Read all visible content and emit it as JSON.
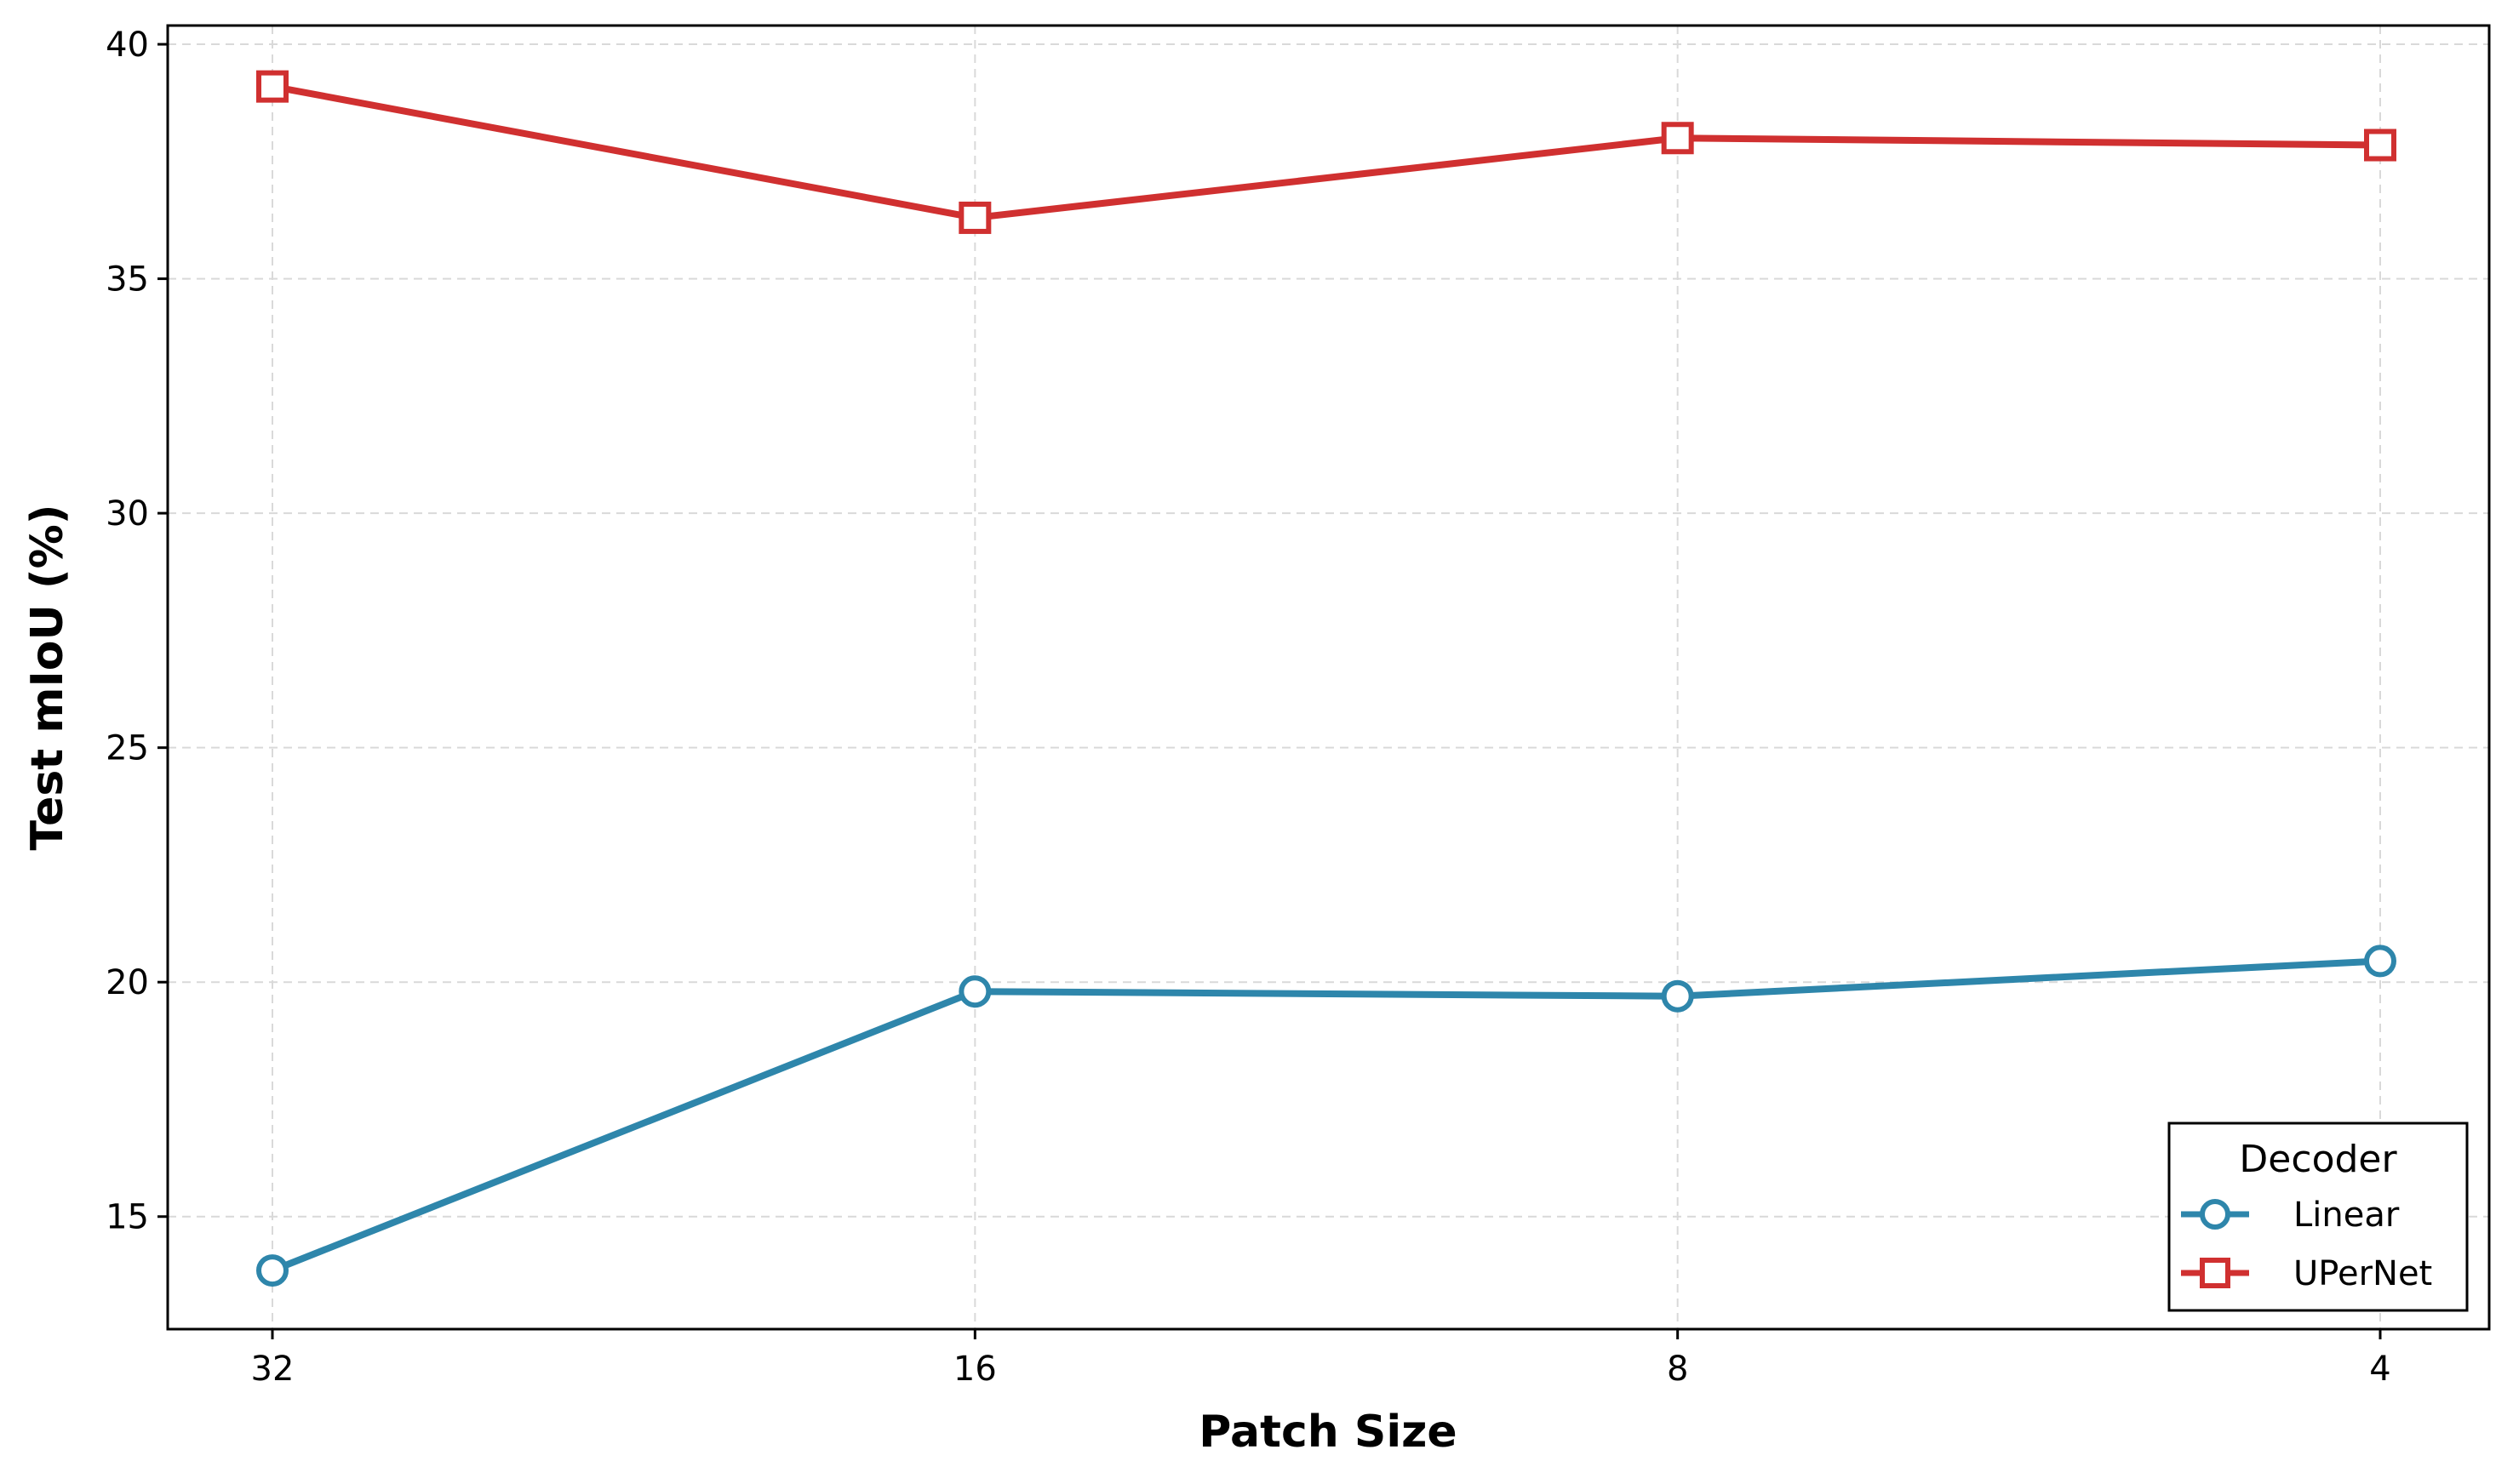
{
  "chart_data": {
    "type": "line",
    "categories": [
      "32",
      "16",
      "8",
      "4"
    ],
    "x": [
      32,
      16,
      8,
      4
    ],
    "xscale": "log",
    "xlabel": "Patch Size",
    "ylabel": "Test mIoU (%)",
    "ylim": [
      12.6,
      40.4
    ],
    "yticks": [
      15,
      20,
      25,
      30,
      35,
      40
    ],
    "grid": true,
    "legend": {
      "title": "Decoder",
      "position": "lower-right"
    },
    "series": [
      {
        "name": "Linear",
        "values": [
          13.85,
          19.8,
          19.7,
          20.45
        ],
        "color": "#2e86ab",
        "marker": "circle"
      },
      {
        "name": "UPerNet",
        "values": [
          39.1,
          36.3,
          38.0,
          37.85
        ],
        "color": "#d03030",
        "marker": "square"
      }
    ]
  }
}
